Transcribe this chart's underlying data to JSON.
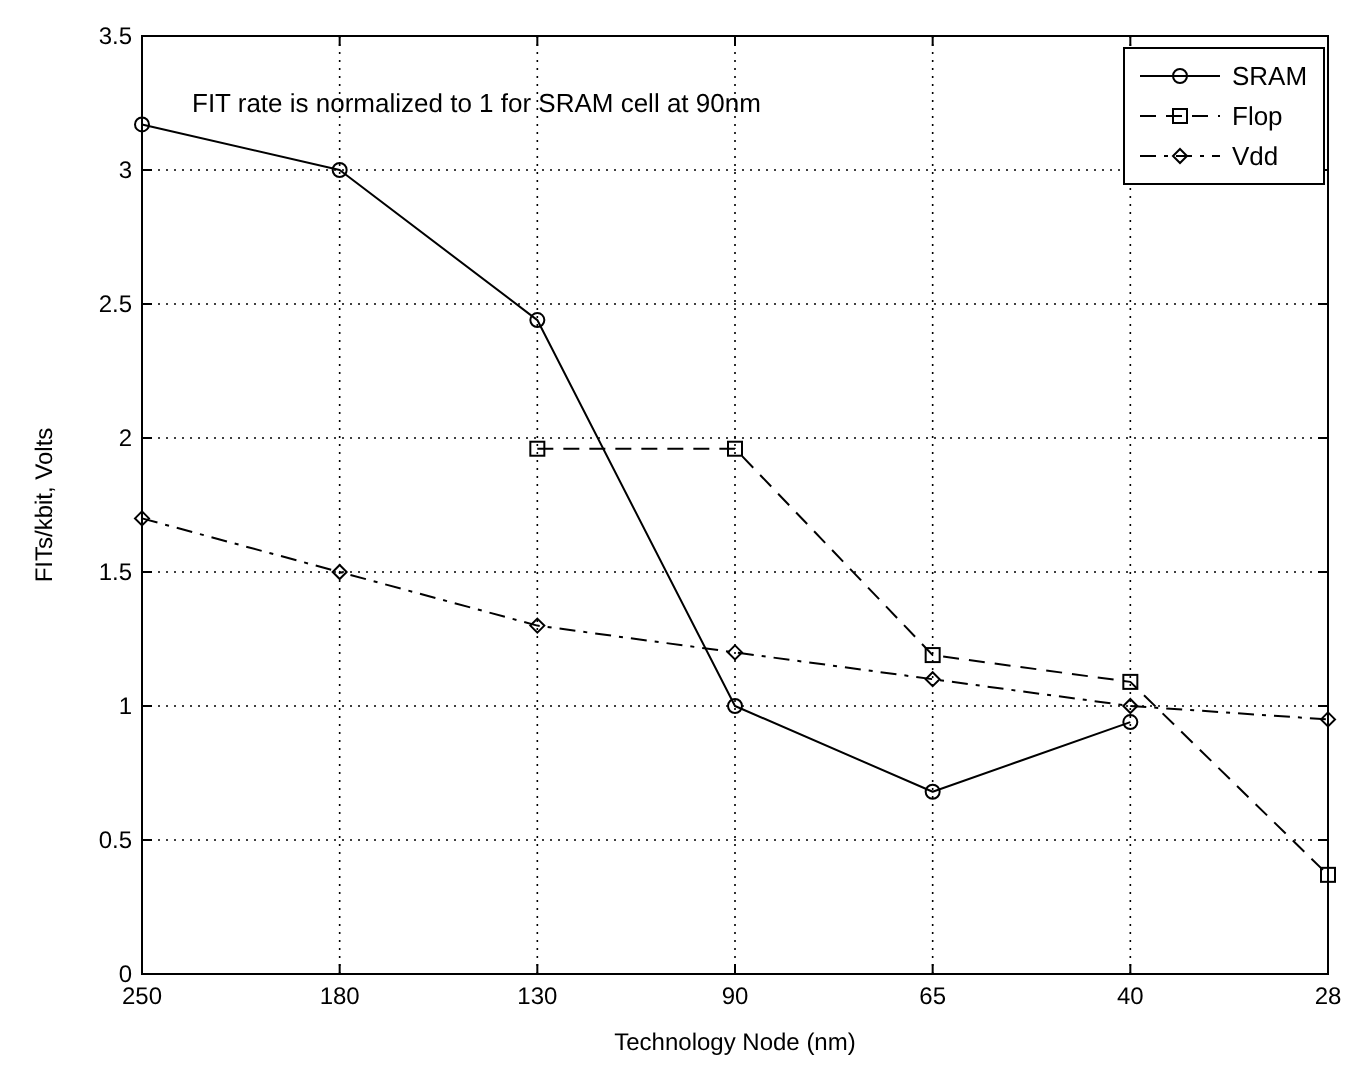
{
  "chart_data": {
    "type": "line",
    "xlabel": "Technology Node (nm)",
    "ylabel": "FITs/kbit, Volts",
    "categories": [
      "250",
      "180",
      "130",
      "90",
      "65",
      "40",
      "28"
    ],
    "ylim": [
      0,
      3.5
    ],
    "yticks": [
      0,
      0.5,
      1,
      1.5,
      2,
      2.5,
      3,
      3.5
    ],
    "grid": true,
    "legend": "top right",
    "annotations": [
      "FIT rate is normalized to 1 for SRAM cell at 90nm"
    ],
    "series": [
      {
        "name": "SRAM",
        "color": "#000000",
        "marker": "circle",
        "line_style": "solid",
        "values": [
          3.17,
          3.0,
          2.44,
          1.0,
          0.68,
          0.94,
          null
        ]
      },
      {
        "name": "Flop",
        "color": "#000000",
        "marker": "square",
        "line_style": "dashed",
        "values": [
          null,
          null,
          1.96,
          1.96,
          1.19,
          1.09,
          0.37
        ]
      },
      {
        "name": "Vdd",
        "color": "#000000",
        "marker": "diamond",
        "line_style": "dashdot",
        "values": [
          1.7,
          1.5,
          1.3,
          1.2,
          1.1,
          1.0,
          0.95
        ]
      }
    ]
  }
}
